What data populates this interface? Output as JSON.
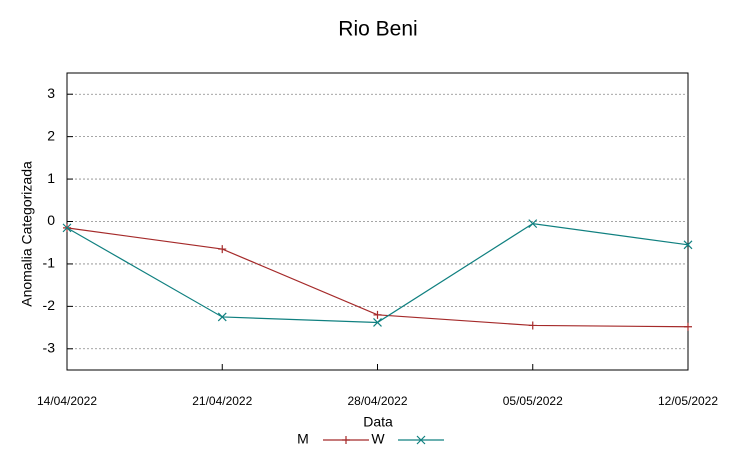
{
  "chart_data": {
    "type": "line",
    "title": "Rio Beni",
    "x_label": "Data",
    "y_label": "Anomalia Categorizada",
    "categories": [
      "14/04/2022",
      "21/04/2022",
      "28/04/2022",
      "05/05/2022",
      "12/05/2022"
    ],
    "series": [
      {
        "name": "M",
        "color": "#a52a2a",
        "marker": "+",
        "values": [
          -0.15,
          -0.65,
          -2.2,
          -2.45,
          -2.48
        ]
      },
      {
        "name": "W",
        "color": "#108080",
        "marker": "x",
        "values": [
          -0.15,
          -2.25,
          -2.38,
          -0.05,
          -0.55
        ]
      }
    ],
    "ylim": [
      -3.5,
      3.5
    ],
    "yticks": [
      -3,
      -2,
      -1,
      0,
      1,
      2,
      3
    ],
    "grid": true
  }
}
